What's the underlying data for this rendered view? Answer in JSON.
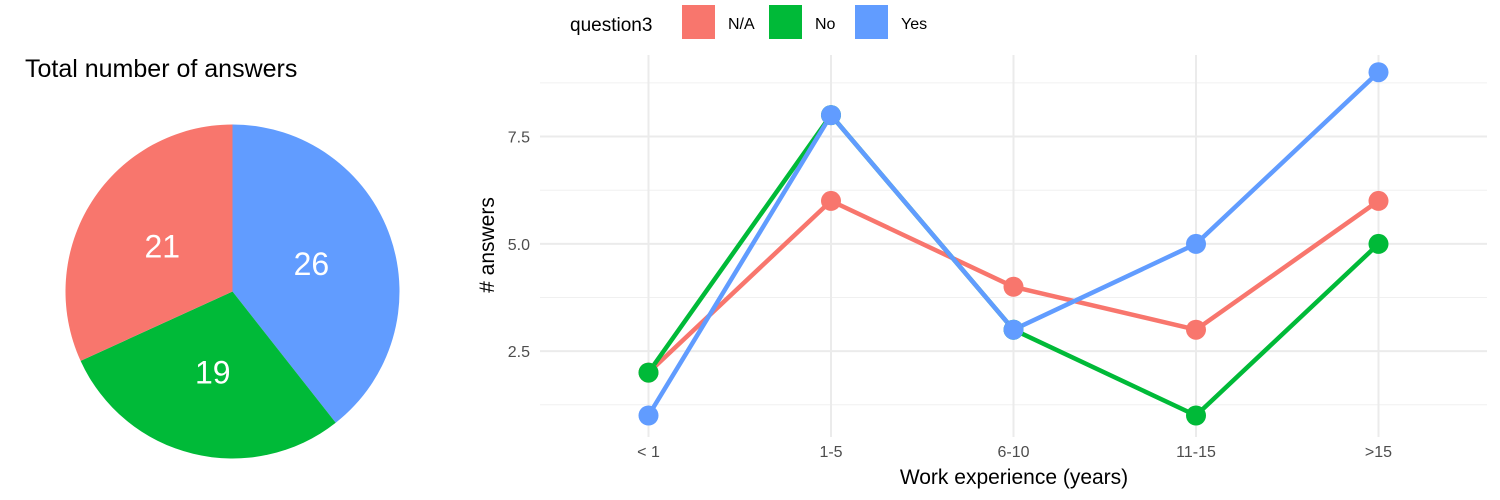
{
  "chart_data": [
    {
      "type": "pie",
      "title": "Total number of answers",
      "slices": [
        {
          "label": "Yes",
          "value": 26,
          "color": "#619CFF"
        },
        {
          "label": "No",
          "value": 19,
          "color": "#00BA38"
        },
        {
          "label": "N/A",
          "value": 21,
          "color": "#F8766D"
        }
      ]
    },
    {
      "type": "line",
      "xlabel": "Work experience (years)",
      "ylabel": "# answers",
      "categories": [
        "< 1",
        "1-5",
        "6-10",
        "11-15",
        ">15"
      ],
      "ylim": [
        0.5,
        9.4
      ],
      "yticks": [
        2.5,
        5.0,
        7.5
      ],
      "grid": true,
      "legend": {
        "title": "question3",
        "placement": "top"
      },
      "series": [
        {
          "name": "N/A",
          "color": "#F8766D",
          "values": [
            2,
            6,
            4,
            3,
            6
          ]
        },
        {
          "name": "No",
          "color": "#00BA38",
          "values": [
            2,
            8,
            3,
            1,
            5
          ]
        },
        {
          "name": "Yes",
          "color": "#619CFF",
          "values": [
            1,
            8,
            3,
            5,
            9
          ]
        }
      ]
    }
  ]
}
